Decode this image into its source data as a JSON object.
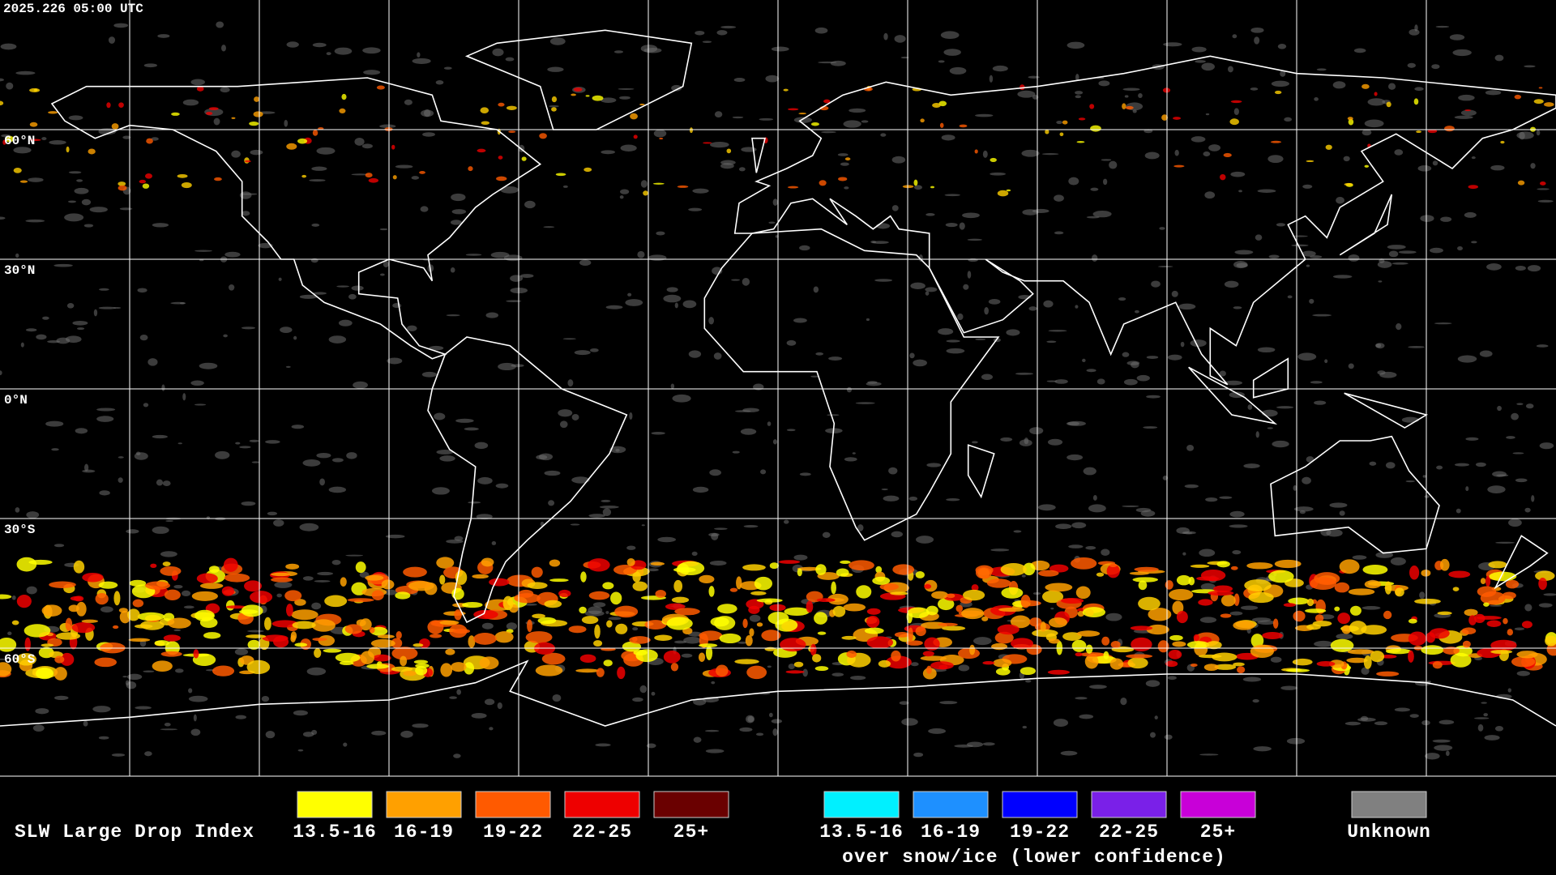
{
  "timestamp": "2025.226 05:00 UTC",
  "latitude_labels": [
    "60°N",
    "30°N",
    "0°N",
    "30°S",
    "60°S"
  ],
  "legend": {
    "title": "SLW Large Drop Index",
    "items": [
      {
        "label": "13.5-16",
        "color": "#ffff00"
      },
      {
        "label": "16-19",
        "color": "#ffa000"
      },
      {
        "label": "19-22",
        "color": "#ff5a00"
      },
      {
        "label": "22-25",
        "color": "#ee0000"
      },
      {
        "label": "25+",
        "color": "#6a0000"
      }
    ],
    "snow_items": [
      {
        "label": "13.5-16",
        "color": "#00f0ff"
      },
      {
        "label": "16-19",
        "color": "#1e90ff"
      },
      {
        "label": "19-22",
        "color": "#0000ff"
      },
      {
        "label": "22-25",
        "color": "#7a20e8"
      },
      {
        "label": "25+",
        "color": "#c800d8"
      }
    ],
    "snow_caption": "over snow/ice (lower confidence)",
    "unknown": {
      "label": "Unknown",
      "color": "#808080"
    }
  }
}
